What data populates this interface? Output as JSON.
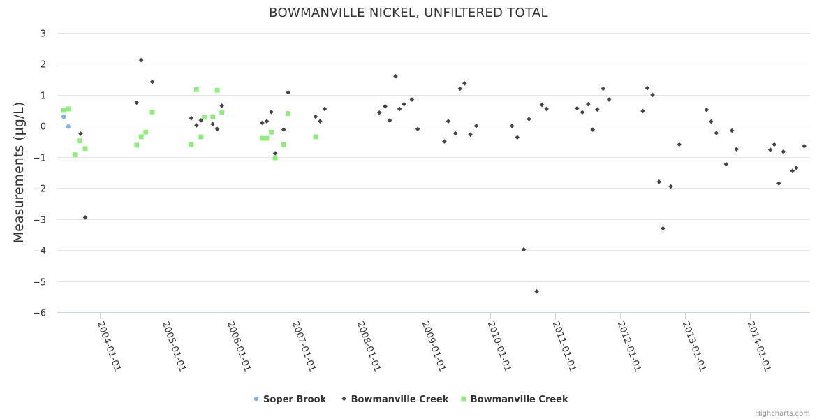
{
  "chart_data": {
    "type": "scatter",
    "title": "BOWMANVILLE NICKEL, UNFILTERED TOTAL",
    "xlabel": "",
    "ylabel": "Measurements (µg/L)",
    "ylim": [
      -6,
      3
    ],
    "yticks": [
      3,
      2,
      1,
      0,
      -1,
      -2,
      -3,
      -4,
      -5,
      -6
    ],
    "ytick_labels": [
      "3",
      "2",
      "1",
      "0",
      "−1",
      "−2",
      "−3",
      "−4",
      "−5",
      "−6"
    ],
    "xlim": [
      2003.35,
      2014.92
    ],
    "xticks": [
      2004,
      2005,
      2006,
      2007,
      2008,
      2009,
      2010,
      2011,
      2012,
      2013,
      2014
    ],
    "xtick_labels": [
      "2004-01-01",
      "2005-01-01",
      "2006-01-01",
      "2007-01-01",
      "2008-01-01",
      "2009-01-01",
      "2010-01-01",
      "2011-01-01",
      "2012-01-01",
      "2013-01-01",
      "2014-01-01"
    ],
    "legend_position": "bottom-center",
    "credits": "Highcharts.com",
    "series": [
      {
        "name": "Soper Brook",
        "marker": "circle",
        "color": "#7cb5ec",
        "points": [
          [
            2003.45,
            0.3
          ],
          [
            2003.52,
            -0.02
          ]
        ]
      },
      {
        "name": "Bowmanville Creek",
        "marker": "diamond",
        "color": "#434348",
        "points": [
          [
            2003.71,
            -0.25
          ],
          [
            2003.78,
            -2.95
          ],
          [
            2004.57,
            0.75
          ],
          [
            2004.64,
            2.12
          ],
          [
            2004.81,
            1.42
          ],
          [
            2005.41,
            0.25
          ],
          [
            2005.49,
            0.02
          ],
          [
            2005.56,
            0.18
          ],
          [
            2005.74,
            0.06
          ],
          [
            2005.81,
            -0.1
          ],
          [
            2005.88,
            0.65
          ],
          [
            2006.5,
            0.1
          ],
          [
            2006.57,
            0.15
          ],
          [
            2006.64,
            0.45
          ],
          [
            2006.7,
            -0.88
          ],
          [
            2006.83,
            -0.12
          ],
          [
            2006.9,
            1.08
          ],
          [
            2007.32,
            0.3
          ],
          [
            2007.39,
            0.15
          ],
          [
            2007.46,
            0.55
          ],
          [
            2008.3,
            0.43
          ],
          [
            2008.39,
            0.63
          ],
          [
            2008.46,
            0.18
          ],
          [
            2008.55,
            1.6
          ],
          [
            2008.61,
            0.55
          ],
          [
            2008.68,
            0.7
          ],
          [
            2008.8,
            0.85
          ],
          [
            2008.89,
            -0.1
          ],
          [
            2009.3,
            -0.5
          ],
          [
            2009.36,
            0.15
          ],
          [
            2009.47,
            -0.24
          ],
          [
            2009.54,
            1.2
          ],
          [
            2009.61,
            1.37
          ],
          [
            2009.7,
            -0.28
          ],
          [
            2009.79,
            0.0
          ],
          [
            2010.34,
            0.0
          ],
          [
            2010.42,
            -0.37
          ],
          [
            2010.52,
            -3.98
          ],
          [
            2010.6,
            0.22
          ],
          [
            2010.72,
            -5.33
          ],
          [
            2010.8,
            0.68
          ],
          [
            2010.87,
            0.55
          ],
          [
            2011.34,
            0.57
          ],
          [
            2011.42,
            0.44
          ],
          [
            2011.51,
            0.7
          ],
          [
            2011.58,
            -0.12
          ],
          [
            2011.65,
            0.53
          ],
          [
            2011.74,
            1.2
          ],
          [
            2011.83,
            0.85
          ],
          [
            2012.35,
            0.48
          ],
          [
            2012.42,
            1.22
          ],
          [
            2012.5,
            1.0
          ],
          [
            2012.6,
            -1.8
          ],
          [
            2012.66,
            -3.3
          ],
          [
            2012.78,
            -1.95
          ],
          [
            2012.91,
            -0.6
          ],
          [
            2013.33,
            0.52
          ],
          [
            2013.4,
            0.14
          ],
          [
            2013.48,
            -0.23
          ],
          [
            2013.63,
            -1.23
          ],
          [
            2013.72,
            -0.15
          ],
          [
            2013.79,
            -0.75
          ],
          [
            2014.31,
            -0.77
          ],
          [
            2014.37,
            -0.6
          ],
          [
            2014.44,
            -1.85
          ],
          [
            2014.51,
            -0.83
          ],
          [
            2014.65,
            -1.45
          ],
          [
            2014.71,
            -1.35
          ],
          [
            2014.83,
            -0.65
          ]
        ]
      },
      {
        "name": "Bowmanville Creek",
        "marker": "square",
        "color": "#90ed7d",
        "points": [
          [
            2003.45,
            0.5
          ],
          [
            2003.52,
            0.55
          ],
          [
            2003.62,
            -0.93
          ],
          [
            2003.69,
            -0.48
          ],
          [
            2003.78,
            -0.73
          ],
          [
            2004.57,
            -0.62
          ],
          [
            2004.64,
            -0.35
          ],
          [
            2004.71,
            -0.2
          ],
          [
            2004.81,
            0.45
          ],
          [
            2005.41,
            -0.6
          ],
          [
            2005.49,
            1.17
          ],
          [
            2005.56,
            -0.35
          ],
          [
            2005.61,
            0.28
          ],
          [
            2005.74,
            0.3
          ],
          [
            2005.81,
            1.15
          ],
          [
            2005.88,
            0.43
          ],
          [
            2006.5,
            -0.4
          ],
          [
            2006.57,
            -0.4
          ],
          [
            2006.64,
            -0.2
          ],
          [
            2006.7,
            -1.03
          ],
          [
            2006.83,
            -0.6
          ],
          [
            2006.9,
            0.4
          ],
          [
            2007.32,
            -0.35
          ]
        ]
      }
    ]
  }
}
